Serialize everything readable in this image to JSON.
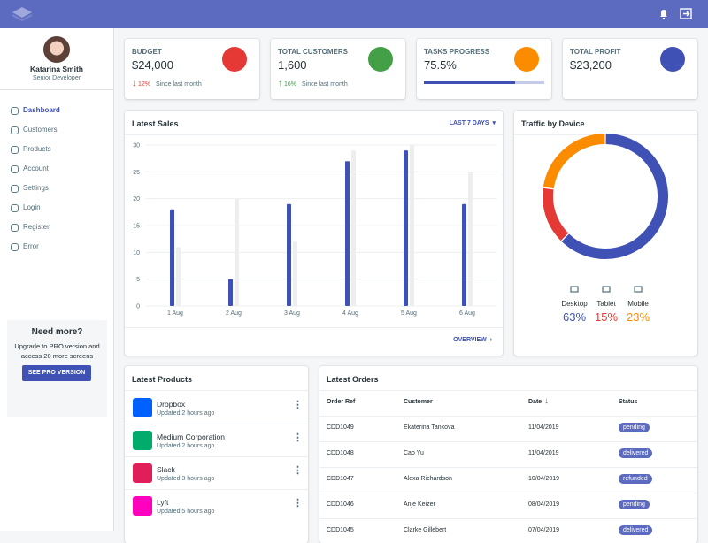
{
  "sidebar": {
    "user": {
      "name": "Katarina Smith",
      "role": "Senior Developer"
    },
    "nav": [
      "Dashboard",
      "Customers",
      "Products",
      "Account",
      "Settings",
      "Login",
      "Register",
      "Error"
    ],
    "promo": {
      "title": "Need more?",
      "text": "Upgrade to PRO version and access 20 more screens",
      "button": "SEE PRO VERSION"
    }
  },
  "cards": [
    {
      "title": "BUDGET",
      "value": "$24,000",
      "change": "12%",
      "note": "Since last month",
      "color": "#e53935"
    },
    {
      "title": "TOTAL CUSTOMERS",
      "value": "1,600",
      "change": "16%",
      "note": "Since last month",
      "color": "#43a047"
    },
    {
      "title": "TASKS PROGRESS",
      "value_label": "75.5%",
      "value": 75.5,
      "color": "#fb8c00"
    },
    {
      "title": "TOTAL PROFIT",
      "value": "$23,200",
      "color": "#3f51b5"
    }
  ],
  "latest_sales": {
    "type": "bar",
    "title": "Latest Sales",
    "range": "LAST 7 DAYS",
    "link": "OVERVIEW",
    "categories": [
      "1 Aug",
      "2 Aug",
      "3 Aug",
      "4 Aug",
      "5 Aug",
      "6 Aug"
    ],
    "series": [
      {
        "color": "#3f51b5",
        "values": [
          18,
          5,
          19,
          27,
          29,
          19
        ]
      },
      {
        "color": "#eeeeee",
        "values": [
          11,
          20,
          12,
          29,
          30,
          25
        ]
      }
    ],
    "ylim": [
      0,
      30
    ],
    "yticks": [
      0,
      5,
      10,
      15,
      20,
      25,
      30
    ],
    "grid": true
  },
  "traffic": {
    "type": "pie",
    "title": "Traffic by Device",
    "categories": [
      "Desktop",
      "Tablet",
      "Mobile"
    ],
    "values": [
      63,
      15,
      23
    ],
    "value_labels": [
      "63%",
      "15%",
      "23%"
    ],
    "colors": [
      "#3f51b5",
      "#e53935",
      "#fb8c00"
    ]
  },
  "latest_products": {
    "title": "Latest Products",
    "items": [
      {
        "name": "Dropbox",
        "updated": "Updated 2 hours ago"
      },
      {
        "name": "Medium Corporation",
        "updated": "Updated 2 hours ago"
      },
      {
        "name": "Slack",
        "updated": "Updated 3 hours ago"
      },
      {
        "name": "Lyft",
        "updated": "Updated 5 hours ago"
      }
    ]
  },
  "latest_orders": {
    "title": "Latest Orders",
    "columns": [
      "Order Ref",
      "Customer",
      "Date",
      "Status"
    ],
    "rows": [
      [
        "CDD1049",
        "Ekaterina Tankova",
        "11/04/2019",
        "pending"
      ],
      [
        "CDD1048",
        "Cao Yu",
        "11/04/2019",
        "delivered"
      ],
      [
        "CDD1047",
        "Alexa Richardson",
        "10/04/2019",
        "refunded"
      ],
      [
        "CDD1046",
        "Anje Keizer",
        "08/04/2019",
        "pending"
      ],
      [
        "CDD1045",
        "Clarke Gillebert",
        "07/04/2019",
        "delivered"
      ]
    ]
  }
}
